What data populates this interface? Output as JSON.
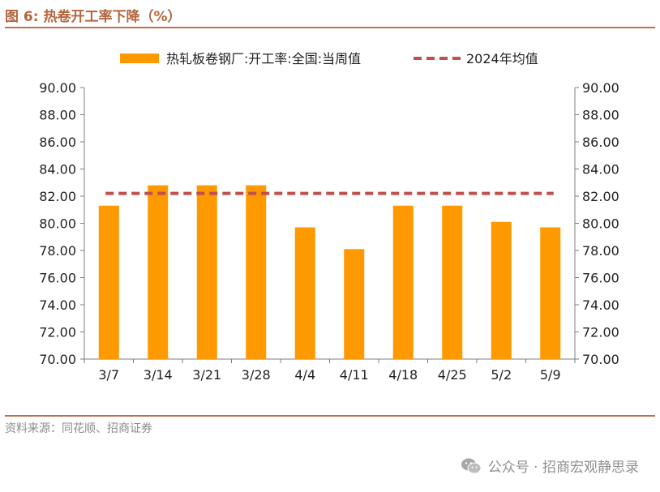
{
  "figure_title": "图 6:  热卷开工率下降（%）",
  "source": "资料来源：同花顺、招商证券",
  "watermark": "公众号 · 招商宏观静思录",
  "colors": {
    "bar": "#ff9900",
    "avg_line": "#c0504d",
    "title": "#b5653e",
    "rule": "#c0704b"
  },
  "chart_data": {
    "type": "bar",
    "categories": [
      "3/7",
      "3/14",
      "3/21",
      "3/28",
      "4/4",
      "4/11",
      "4/18",
      "4/25",
      "5/2",
      "5/9"
    ],
    "series": [
      {
        "name": "热轧板卷钢厂:开工率:全国:当周值",
        "kind": "bar",
        "values": [
          81.3,
          82.8,
          82.8,
          82.8,
          79.7,
          78.1,
          81.3,
          81.3,
          80.1,
          79.7
        ]
      },
      {
        "name": "2024年均值",
        "kind": "dashed-line",
        "values": [
          82.2,
          82.2,
          82.2,
          82.2,
          82.2,
          82.2,
          82.2,
          82.2,
          82.2,
          82.2
        ]
      }
    ],
    "ylim": [
      70,
      90
    ],
    "yticks": [
      "70.00",
      "72.00",
      "74.00",
      "76.00",
      "78.00",
      "80.00",
      "82.00",
      "84.00",
      "86.00",
      "88.00",
      "90.00"
    ],
    "secondary_yticks": [
      "70.00",
      "72.00",
      "74.00",
      "76.00",
      "78.00",
      "80.00",
      "82.00",
      "84.00",
      "86.00",
      "88.00",
      "90.00"
    ],
    "legend_position": "top",
    "grid": false
  }
}
